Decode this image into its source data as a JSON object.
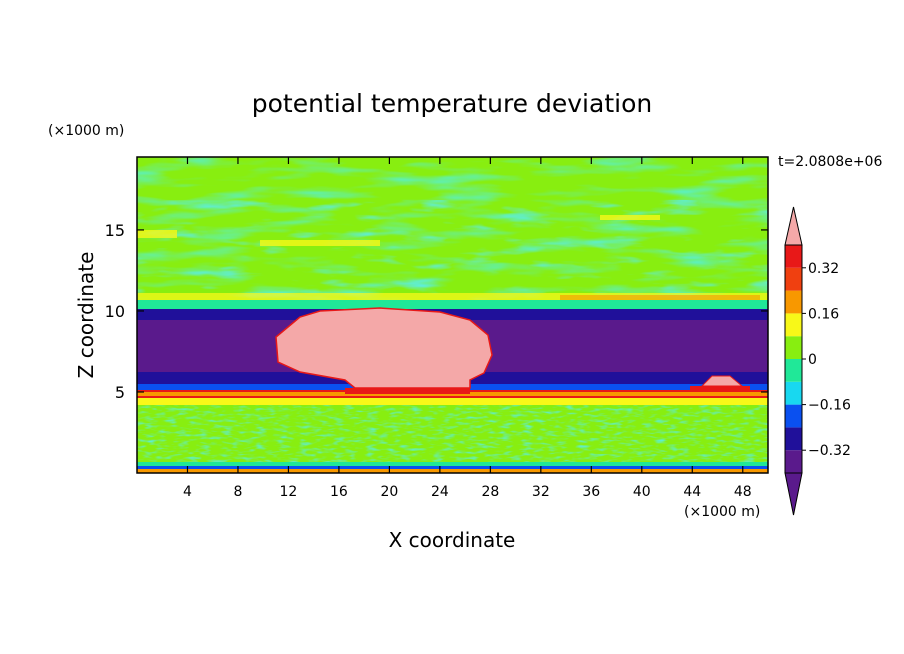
{
  "chart_data": {
    "type": "heatmap",
    "title": "potential temperature deviation",
    "xlabel": "X coordinate",
    "ylabel": "Z coordinate",
    "x_unit": "(×1000 m)",
    "y_unit": "(×1000 m)",
    "time_label": "t=2.0808e+06",
    "xlim": [
      0,
      50
    ],
    "ylim": [
      0,
      19.5
    ],
    "x_ticks": [
      "4",
      "8",
      "12",
      "16",
      "20",
      "24",
      "28",
      "32",
      "36",
      "40",
      "44",
      "48"
    ],
    "y_ticks": [
      "5",
      "10",
      "15"
    ],
    "colorbar": {
      "levels": [
        -0.4,
        -0.32,
        -0.24,
        -0.16,
        -0.08,
        0,
        0.08,
        0.16,
        0.24,
        0.32,
        0.4
      ],
      "labels": [
        "0.32",
        "0.16",
        "0",
        "−0.16",
        "−0.32"
      ],
      "colors": [
        "#5a1a8c",
        "#20109a",
        "#0a50f0",
        "#18d8f0",
        "#20e898",
        "#88ee10",
        "#f8f818",
        "#f89800",
        "#f04010",
        "#e81818",
        "#f4a8a8"
      ],
      "extend": "both"
    },
    "layers": [
      {
        "z_range": [
          0,
          0.5
        ],
        "value": "mixed noise"
      },
      {
        "z_range": [
          0.5,
          4.2
        ],
        "value": "approx -0.08 to 0.08"
      },
      {
        "z_range": [
          4.2,
          5.3
        ],
        "value": "approx 0.24 to 0.32"
      },
      {
        "z_range": [
          5.3,
          10.3
        ],
        "value": "approx -0.40 to -0.32"
      },
      {
        "z_range": [
          10.3,
          19.5
        ],
        "value": "approx -0.08 to 0.16"
      }
    ],
    "anomaly": {
      "x_range": [
        11.5,
        29
      ],
      "z_range": [
        5.3,
        10.3
      ],
      "value": "> 0.4"
    }
  }
}
